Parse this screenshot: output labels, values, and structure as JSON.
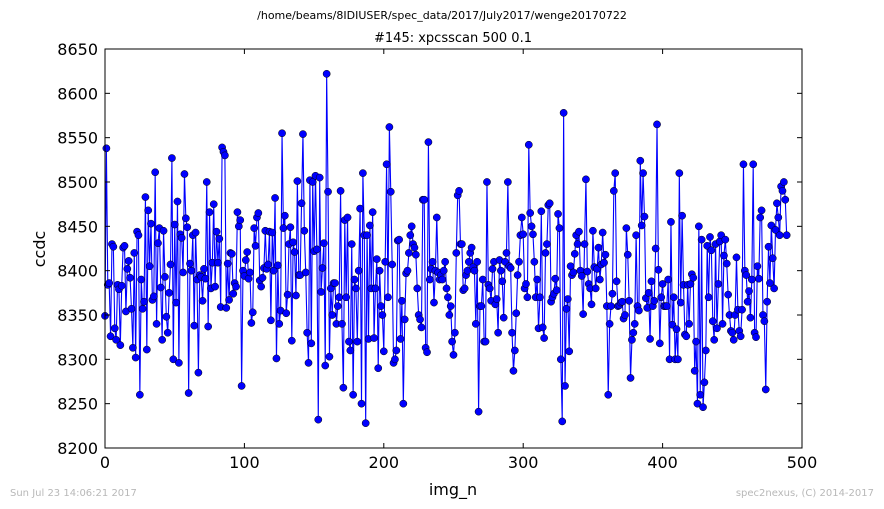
{
  "suptitle": "/home/beams/8IDIUSER/spec_data/2017/July2017/wenge20170722",
  "footer": {
    "left": "Sun Jul 23 14:06:21 2017",
    "right": "spec2nexus, (C) 2014-2017"
  },
  "chart_data": {
    "type": "line",
    "title": "#145: xpcsscan 500 0.1",
    "xlabel": "img_n",
    "ylabel": "ccdc",
    "xlim": [
      0,
      500
    ],
    "ylim": [
      8200,
      8650
    ],
    "xticks": [
      0,
      100,
      200,
      300,
      400,
      500
    ],
    "yticks": [
      8200,
      8250,
      8300,
      8350,
      8400,
      8450,
      8500,
      8550,
      8600,
      8650
    ],
    "grid": false,
    "legend": "none",
    "series": [
      {
        "color": "#0000ff",
        "marker": "circle",
        "x_start": 0,
        "x_step": 1,
        "values": [
          8349,
          8538,
          8384,
          8386,
          8326,
          8430,
          8427,
          8335,
          8322,
          8384,
          8379,
          8316,
          8383,
          8426,
          8428,
          8354,
          8402,
          8411,
          8392,
          8357,
          8313,
          8420,
          8302,
          8444,
          8440,
          8260,
          8390,
          8357,
          8365,
          8483,
          8311,
          8468,
          8405,
          8453,
          8367,
          8371,
          8511,
          8340,
          8431,
          8448,
          8381,
          8322,
          8445,
          8393,
          8348,
          8330,
          8375,
          8407,
          8527,
          8300,
          8452,
          8364,
          8478,
          8296,
          8441,
          8437,
          8398,
          8509,
          8459,
          8449,
          8262,
          8408,
          8400,
          8440,
          8338,
          8443,
          8390,
          8285,
          8395,
          8393,
          8366,
          8402,
          8391,
          8500,
          8337,
          8466,
          8380,
          8409,
          8475,
          8382,
          8444,
          8409,
          8436,
          8359,
          8539,
          8534,
          8530,
          8358,
          8408,
          8367,
          8420,
          8419,
          8374,
          8386,
          8382,
          8466,
          8450,
          8457,
          8270,
          8400,
          8394,
          8412,
          8421,
          8391,
          8398,
          8341,
          8353,
          8448,
          8428,
          8460,
          8465,
          8389,
          8382,
          8392,
          8403,
          8445,
          8402,
          8407,
          8444,
          8344,
          8443,
          8400,
          8482,
          8301,
          8406,
          8340,
          8355,
          8555,
          8448,
          8462,
          8352,
          8373,
          8430,
          8449,
          8321,
          8432,
          8421,
          8372,
          8501,
          8395,
          8395,
          8476,
          8554,
          8445,
          8398,
          8330,
          8296,
          8502,
          8318,
          8500,
          8422,
          8507,
          8424,
          8232,
          8505,
          8376,
          8403,
          8431,
          8293,
          8622,
          8489,
          8303,
          8380,
          8350,
          8386,
          8386,
          8340,
          8360,
          8370,
          8490,
          8340,
          8268,
          8457,
          8370,
          8460,
          8320,
          8310,
          8430,
          8260,
          8390,
          8380,
          8320,
          8400,
          8470,
          8250,
          8510,
          8440,
          8228,
          8440,
          8323,
          8451,
          8380,
          8466,
          8324,
          8380,
          8413,
          8290,
          8400,
          8360,
          8350,
          8309,
          8410,
          8520,
          8370,
          8562,
          8489,
          8407,
          8296,
          8300,
          8310,
          8434,
          8435,
          8323,
          8366,
          8250,
          8345,
          8397,
          8400,
          8420,
          8440,
          8450,
          8430,
          8426,
          8418,
          8380,
          8350,
          8345,
          8336,
          8480,
          8480,
          8313,
          8308,
          8545,
          8390,
          8402,
          8410,
          8364,
          8400,
          8460,
          8398,
          8390,
          8395,
          8390,
          8400,
          8410,
          8380,
          8370,
          8350,
          8360,
          8320,
          8305,
          8330,
          8420,
          8485,
          8490,
          8430,
          8430,
          8378,
          8380,
          8395,
          8400,
          8410,
          8420,
          8426,
          8404,
          8400,
          8340,
          8410,
          8241,
          8360,
          8360,
          8390,
          8320,
          8320,
          8500,
          8384,
          8380,
          8366,
          8402,
          8410,
          8362,
          8368,
          8330,
          8412,
          8400,
          8388,
          8347,
          8410,
          8420,
          8500,
          8405,
          8403,
          8330,
          8287,
          8310,
          8352,
          8395,
          8410,
          8440,
          8460,
          8441,
          8380,
          8385,
          8370,
          8542,
          8465,
          8450,
          8441,
          8410,
          8370,
          8390,
          8335,
          8370,
          8467,
          8336,
          8324,
          8420,
          8430,
          8474,
          8476,
          8365,
          8370,
          8374,
          8391,
          8378,
          8464,
          8448,
          8300,
          8230,
          8578,
          8270,
          8357,
          8368,
          8309,
          8405,
          8395,
          8398,
          8419,
          8440,
          8430,
          8444,
          8400,
          8394,
          8351,
          8430,
          8503,
          8399,
          8385,
          8380,
          8362,
          8445,
          8404,
          8380,
          8402,
          8426,
          8390,
          8407,
          8443,
          8409,
          8418,
          8360,
          8260,
          8340,
          8360,
          8374,
          8490,
          8510,
          8388,
          8360,
          8361,
          8364,
          8365,
          8346,
          8350,
          8448,
          8418,
          8366,
          8279,
          8322,
          8330,
          8340,
          8440,
          8360,
          8355,
          8524,
          8451,
          8510,
          8461,
          8369,
          8358,
          8375,
          8323,
          8388,
          8360,
          8366,
          8425,
          8565,
          8401,
          8318,
          8370,
          8385,
          8360,
          8360,
          8360,
          8390,
          8300,
          8455,
          8339,
          8370,
          8300,
          8334,
          8300,
          8510,
          8364,
          8462,
          8384,
          8328,
          8326,
          8384,
          8340,
          8385,
          8396,
          8392,
          8287,
          8320,
          8250,
          8450,
          8260,
          8435,
          8246,
          8274,
          8310,
          8428,
          8370,
          8438,
          8423,
          8343,
          8322,
          8430,
          8335,
          8385,
          8433,
          8440,
          8340,
          8417,
          8435,
          8408,
          8373,
          8350,
          8332,
          8330,
          8322,
          8350,
          8415,
          8356,
          8332,
          8326,
          8356,
          8520,
          8400,
          8395,
          8365,
          8377,
          8347,
          8390,
          8520,
          8330,
          8325,
          8405,
          8391,
          8460,
          8468,
          8350,
          8343,
          8266,
          8365,
          8427,
          8386,
          8451,
          8414,
          8380,
          8446,
          8476,
          8460,
          8440,
          8495,
          8490,
          8500,
          8480,
          8440
        ]
      }
    ]
  }
}
